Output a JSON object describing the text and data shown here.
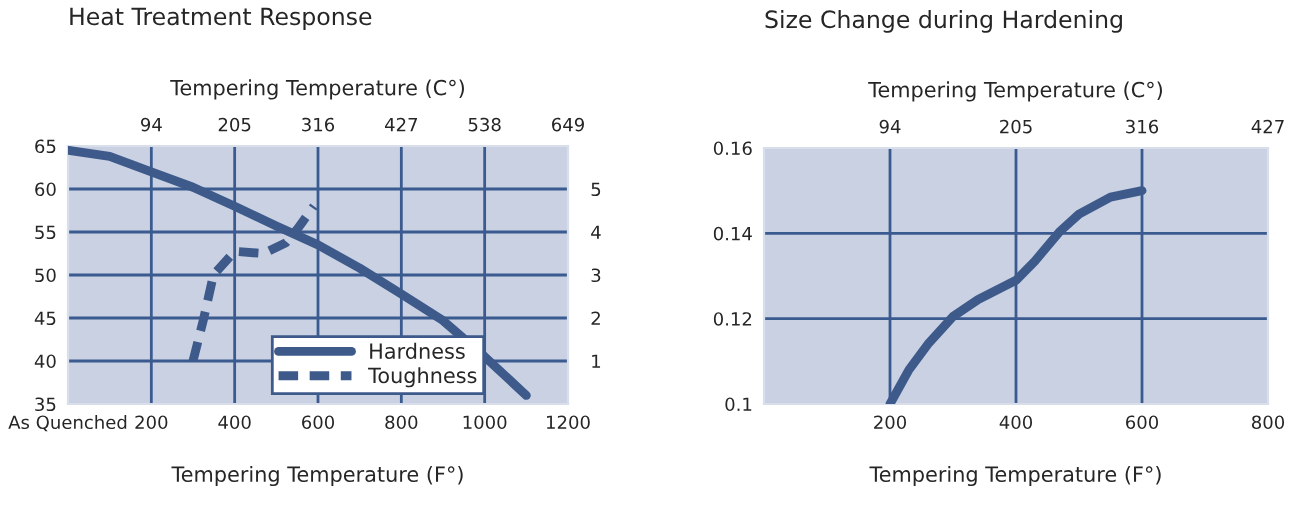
{
  "chart_data": [
    {
      "type": "line",
      "title": "Heat Treatment Response",
      "xlabel": "Tempering Temperature (F°)",
      "x2label": "Tempering Temperature (C°)",
      "xlim": [
        0,
        1200
      ],
      "xticks": [
        {
          "value": 0,
          "label": "As Quenched"
        },
        200,
        400,
        600,
        800,
        1000,
        1200
      ],
      "x2lim": [
        -17,
        649
      ],
      "x2ticks": [
        94,
        205,
        316,
        427,
        538,
        649
      ],
      "ylim": [
        35,
        65
      ],
      "yticks": [
        35,
        40,
        45,
        50,
        55,
        60,
        65
      ],
      "y2lim": [
        0,
        6
      ],
      "y2ticks": [
        1,
        2,
        3,
        4,
        5
      ],
      "grid": true,
      "legend": "bottom",
      "series": [
        {
          "name": "Hardness",
          "color": "#3d5a8a",
          "line_style": "solid",
          "x": [
            0,
            100,
            200,
            300,
            400,
            500,
            600,
            700,
            800,
            900,
            1000,
            1100
          ],
          "values": [
            64.5,
            63.8,
            62,
            60.2,
            58,
            55.7,
            53.5,
            50.8,
            47.8,
            44.7,
            40.5,
            36
          ]
        },
        {
          "name": "Toughness",
          "color": "#3d5a8a",
          "line_style": "dashed",
          "axis": "y2",
          "x": [
            300,
            326,
            349,
            400,
            470,
            523,
            553,
            590
          ],
          "values": [
            1,
            2,
            3,
            3.55,
            3.5,
            3.75,
            4.1,
            4.6
          ]
        }
      ]
    },
    {
      "type": "line",
      "title": "Size Change during Hardening",
      "xlabel": "Tempering Temperature (F°)",
      "x2label": "Tempering Temperature (C°)",
      "xlim": [
        0,
        800
      ],
      "xticks": [
        200,
        400,
        600,
        800
      ],
      "x2lim": [
        -17,
        427
      ],
      "x2ticks": [
        94,
        205,
        316,
        427
      ],
      "ylim": [
        0.1,
        0.16
      ],
      "yticks": [
        {
          "value": 0.1,
          "label": "0.1"
        },
        0.12,
        0.14,
        0.16
      ],
      "grid": true,
      "series": [
        {
          "color": "#3d5a8a",
          "line_style": "solid",
          "x": [
            200,
            230,
            260,
            300,
            340,
            400,
            430,
            470,
            500,
            550,
            600
          ],
          "values": [
            0.1,
            0.108,
            0.114,
            0.1205,
            0.1245,
            0.129,
            0.1335,
            0.1405,
            0.1445,
            0.1485,
            0.15
          ]
        }
      ]
    }
  ]
}
